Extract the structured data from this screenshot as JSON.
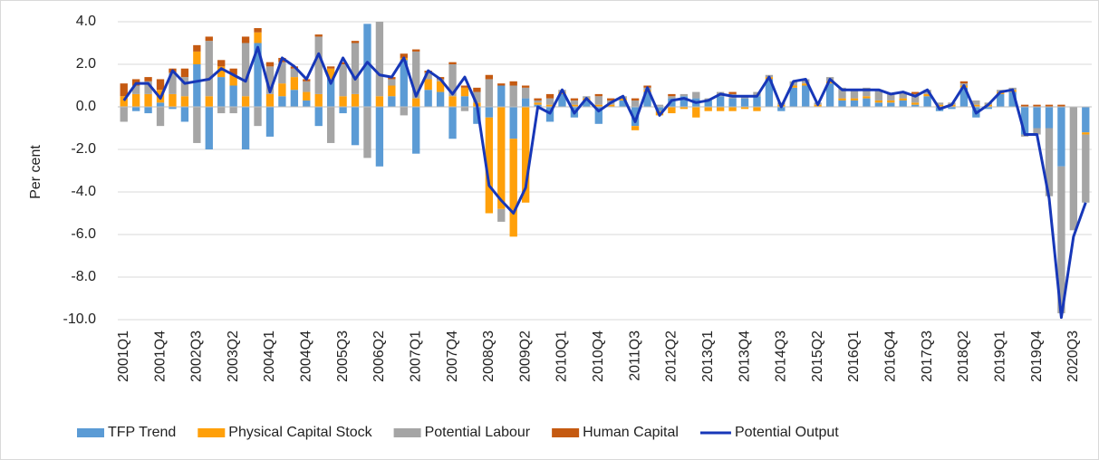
{
  "chart_data": {
    "type": "bar",
    "stacked": true,
    "y_label": "Per cent",
    "categories": [
      "2001Q1",
      null,
      null,
      "2001Q4",
      null,
      null,
      "2002Q3",
      null,
      null,
      "2003Q2",
      null,
      null,
      "2004Q1",
      null,
      null,
      "2004Q4",
      null,
      null,
      "2005Q3",
      null,
      null,
      "2006Q2",
      null,
      null,
      "2007Q1",
      null,
      null,
      "2007Q4",
      null,
      null,
      "2008Q3",
      null,
      null,
      "2009Q2",
      null,
      null,
      "2010Q1",
      null,
      null,
      "2010Q4",
      null,
      null,
      "2011Q3",
      null,
      null,
      "2012Q2",
      null,
      null,
      "2013Q1",
      null,
      null,
      "2013Q4",
      null,
      null,
      "2014Q3",
      null,
      null,
      "2015Q2",
      null,
      null,
      "2016Q1",
      null,
      null,
      "2016Q4",
      null,
      null,
      "2017Q3",
      null,
      null,
      "2018Q2",
      null,
      null,
      "2019Q1",
      null,
      null,
      "2019Q4",
      null,
      null,
      "2020Q3",
      null
    ],
    "series": [
      {
        "name": "TFP Trend",
        "type": "bar",
        "color": "#5b9bd5",
        "values": [
          0.0,
          -0.2,
          -0.3,
          0.2,
          -0.1,
          -0.7,
          2.0,
          -2.0,
          1.4,
          1.0,
          -2.0,
          3.0,
          -1.4,
          0.5,
          0.8,
          0.3,
          -0.9,
          1.3,
          -0.3,
          -1.8,
          3.9,
          -2.8,
          0.5,
          2.2,
          -2.2,
          0.8,
          0.7,
          -1.5,
          0.5,
          -0.8,
          -0.5,
          1.0,
          -1.5,
          0.4,
          0.1,
          -0.7,
          0.6,
          -0.5,
          0.3,
          -0.8,
          0.0,
          0.3,
          -0.9,
          0.7,
          -0.2,
          0.4,
          0.5,
          0.4,
          0.3,
          0.5,
          0.4,
          0.4,
          0.5,
          1.3,
          -0.2,
          0.9,
          1.0,
          0.0,
          1.1,
          0.3,
          0.3,
          0.4,
          0.2,
          0.2,
          0.3,
          0.1,
          0.5,
          -0.2,
          -0.1,
          0.9,
          -0.5,
          -0.1,
          0.6,
          0.7,
          -1.3,
          -1.0,
          -1.0,
          -2.8,
          0.0,
          -1.2
        ]
      },
      {
        "name": "Physical Capital Stock",
        "type": "bar",
        "color": "#ffa00a",
        "values": [
          0.5,
          0.6,
          0.6,
          0.6,
          0.6,
          0.5,
          0.6,
          0.5,
          0.5,
          0.5,
          0.5,
          0.5,
          0.6,
          0.6,
          0.6,
          0.4,
          0.6,
          0.5,
          0.5,
          0.6,
          0.0,
          0.5,
          0.5,
          0.1,
          0.4,
          0.5,
          0.5,
          0.5,
          0.4,
          0.2,
          -4.5,
          -4.8,
          -4.6,
          -4.5,
          0.1,
          0.1,
          0.1,
          0.1,
          0.1,
          0.1,
          0.1,
          0.1,
          -0.2,
          0.1,
          -0.2,
          -0.3,
          -0.1,
          -0.5,
          -0.2,
          -0.2,
          -0.2,
          -0.1,
          -0.2,
          0.1,
          0.1,
          0.1,
          0.1,
          0.1,
          0.1,
          0.1,
          0.1,
          0.1,
          0.1,
          0.1,
          0.1,
          0.1,
          0.1,
          0.1,
          0.1,
          0.1,
          0.1,
          0.1,
          0.1,
          0.1,
          0.0,
          0.0,
          0.0,
          0.0,
          0.0,
          -0.1
        ]
      },
      {
        "name": "Potential Labour",
        "type": "bar",
        "color": "#a5a5a5",
        "values": [
          -0.7,
          0.4,
          0.6,
          -0.9,
          1.0,
          0.9,
          -1.7,
          2.6,
          -0.3,
          -0.3,
          2.5,
          -0.9,
          1.3,
          1.0,
          0.4,
          0.5,
          2.7,
          -1.7,
          1.5,
          2.4,
          -2.4,
          3.5,
          0.3,
          -0.4,
          2.2,
          0.3,
          0.1,
          1.5,
          -0.2,
          0.5,
          1.3,
          -0.6,
          1.0,
          0.5,
          0.1,
          0.3,
          0.1,
          0.2,
          0.1,
          0.4,
          0.2,
          0.1,
          0.3,
          0.1,
          0.1,
          0.1,
          0.1,
          0.3,
          0.1,
          0.2,
          0.2,
          0.1,
          0.2,
          0.1,
          0.1,
          0.2,
          0.2,
          0.1,
          0.2,
          0.5,
          0.4,
          0.4,
          0.5,
          0.3,
          0.3,
          0.4,
          0.2,
          0.1,
          0.1,
          0.1,
          0.2,
          0.1,
          0.1,
          0.1,
          -0.1,
          -0.3,
          -3.2,
          -6.9,
          -5.8,
          -3.2
        ]
      },
      {
        "name": "Human Capital",
        "type": "bar",
        "color": "#c55a11",
        "values": [
          0.6,
          0.3,
          0.2,
          0.5,
          0.2,
          0.4,
          0.3,
          0.2,
          0.3,
          0.3,
          0.3,
          0.2,
          0.2,
          0.2,
          0.1,
          0.1,
          0.1,
          0.1,
          0.1,
          0.1,
          0.0,
          0.0,
          0.1,
          0.2,
          0.1,
          0.1,
          0.1,
          0.1,
          0.1,
          0.2,
          0.2,
          0.1,
          0.2,
          0.1,
          0.1,
          0.2,
          0.0,
          0.1,
          0.0,
          0.1,
          0.1,
          0.0,
          0.1,
          0.1,
          0.0,
          0.1,
          0.0,
          0.0,
          0.0,
          0.0,
          0.1,
          0.0,
          0.0,
          0.0,
          0.0,
          0.0,
          0.0,
          0.0,
          0.0,
          0.0,
          0.0,
          0.0,
          0.0,
          0.0,
          0.0,
          0.1,
          0.0,
          0.0,
          0.0,
          0.1,
          0.0,
          0.0,
          0.0,
          0.0,
          0.1,
          0.1,
          0.1,
          0.1,
          0.0,
          0.0
        ]
      },
      {
        "name": "Potential Output",
        "type": "line",
        "color": "#1737b8",
        "values": [
          0.3,
          1.1,
          1.1,
          0.4,
          1.7,
          1.1,
          1.2,
          1.3,
          1.8,
          1.5,
          1.2,
          2.8,
          0.7,
          2.3,
          1.9,
          1.3,
          2.5,
          1.1,
          2.3,
          1.3,
          2.1,
          1.5,
          1.4,
          2.3,
          0.5,
          1.7,
          1.3,
          0.6,
          1.4,
          0.1,
          -3.7,
          -4.4,
          -5.0,
          -3.8,
          0.0,
          -0.3,
          0.8,
          -0.3,
          0.4,
          -0.2,
          0.2,
          0.5,
          -0.7,
          0.9,
          -0.4,
          0.3,
          0.4,
          0.2,
          0.3,
          0.6,
          0.5,
          0.5,
          0.5,
          1.4,
          0.0,
          1.2,
          1.3,
          0.1,
          1.3,
          0.8,
          0.8,
          0.8,
          0.8,
          0.6,
          0.7,
          0.5,
          0.8,
          -0.1,
          0.1,
          1.0,
          -0.3,
          0.1,
          0.7,
          0.8,
          -1.3,
          -1.3,
          -4.3,
          -9.9,
          -6.1,
          -4.5
        ]
      }
    ],
    "ylim": [
      -10,
      4
    ],
    "yticks": [
      {
        "value": -10,
        "label": "-10.0"
      },
      {
        "value": -8,
        "label": "-8.0"
      },
      {
        "value": -6,
        "label": "-6.0"
      },
      {
        "value": -4,
        "label": "-4.0"
      },
      {
        "value": -2,
        "label": "-2.0"
      },
      {
        "value": 0,
        "label": "0.0"
      },
      {
        "value": 2,
        "label": "2.0"
      },
      {
        "value": 4,
        "label": "4.0"
      }
    ],
    "grid": true,
    "legend": "bottom"
  }
}
